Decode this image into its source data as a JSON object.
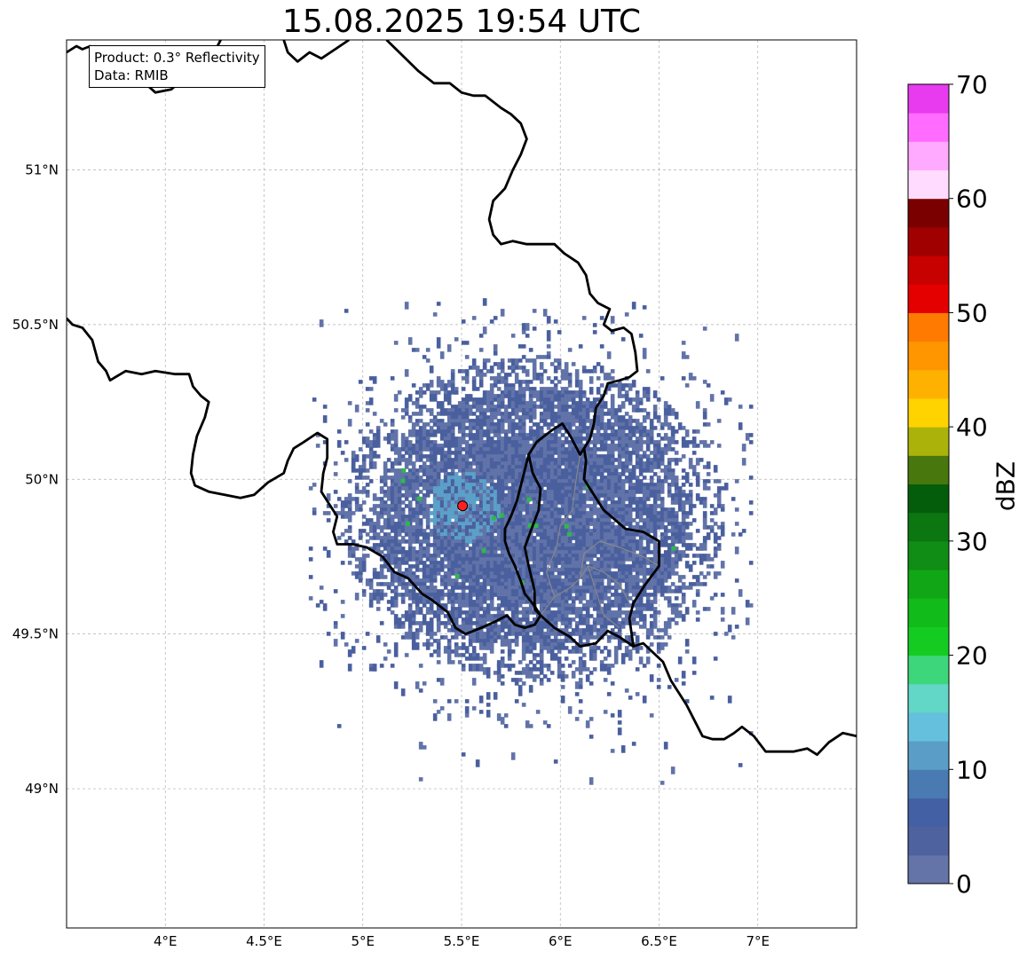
{
  "title": "15.08.2025 19:54 UTC",
  "infobox": {
    "product_line": "Product: 0.3° Reflectivity",
    "data_line": "Data: RMIB"
  },
  "map": {
    "extent": {
      "lon": [
        3.5,
        7.5
      ],
      "lat": [
        48.55,
        51.42
      ]
    },
    "lon_ticks": [
      {
        "value": 4.0,
        "label": "4°E"
      },
      {
        "value": 4.5,
        "label": "4.5°E"
      },
      {
        "value": 5.0,
        "label": "5°E"
      },
      {
        "value": 5.5,
        "label": "5.5°E"
      },
      {
        "value": 6.0,
        "label": "6°E"
      },
      {
        "value": 6.5,
        "label": "6.5°E"
      },
      {
        "value": 7.0,
        "label": "7°E"
      }
    ],
    "lat_ticks": [
      {
        "value": 49.0,
        "label": "49°N"
      },
      {
        "value": 49.5,
        "label": "49.5°N"
      },
      {
        "value": 50.0,
        "label": "50°N"
      },
      {
        "value": 50.5,
        "label": "50.5°N"
      },
      {
        "value": 51.0,
        "label": "51°N"
      }
    ],
    "radar_site": {
      "lon": 5.505,
      "lat": 49.914,
      "color": "#ff2020"
    },
    "echo_center": {
      "lon": 5.85,
      "lat": 49.88
    },
    "borders": [
      [
        [
          3.5,
          51.38
        ],
        [
          3.55,
          51.4
        ],
        [
          3.58,
          51.39
        ],
        [
          3.62,
          51.4
        ],
        [
          3.67,
          51.36
        ],
        [
          3.72,
          51.33
        ],
        [
          3.8,
          51.32
        ],
        [
          3.88,
          51.29
        ],
        [
          3.95,
          51.25
        ],
        [
          4.03,
          51.26
        ],
        [
          4.1,
          51.3
        ],
        [
          4.18,
          51.34
        ],
        [
          4.24,
          51.37
        ],
        [
          4.28,
          51.42
        ]
      ],
      [
        [
          4.6,
          51.42
        ],
        [
          4.62,
          51.38
        ],
        [
          4.67,
          51.35
        ],
        [
          4.73,
          51.38
        ],
        [
          4.79,
          51.36
        ],
        [
          4.86,
          51.39
        ],
        [
          4.93,
          51.42
        ]
      ],
      [
        [
          5.12,
          51.42
        ],
        [
          5.2,
          51.37
        ],
        [
          5.28,
          51.32
        ],
        [
          5.36,
          51.28
        ],
        [
          5.44,
          51.28
        ],
        [
          5.5,
          51.25
        ],
        [
          5.56,
          51.24
        ],
        [
          5.62,
          51.24
        ],
        [
          5.7,
          51.2
        ],
        [
          5.75,
          51.18
        ],
        [
          5.8,
          51.15
        ],
        [
          5.83,
          51.1
        ],
        [
          5.8,
          51.05
        ],
        [
          5.76,
          51.0
        ],
        [
          5.72,
          50.94
        ],
        [
          5.66,
          50.9
        ],
        [
          5.64,
          50.84
        ],
        [
          5.66,
          50.79
        ],
        [
          5.7,
          50.76
        ],
        [
          5.76,
          50.77
        ],
        [
          5.83,
          50.76
        ],
        [
          5.9,
          50.76
        ],
        [
          5.97,
          50.76
        ],
        [
          6.02,
          50.73
        ],
        [
          6.09,
          50.7
        ],
        [
          6.13,
          50.66
        ],
        [
          6.15,
          50.6
        ],
        [
          6.19,
          50.57
        ],
        [
          6.25,
          50.55
        ],
        [
          6.22,
          50.5
        ],
        [
          6.26,
          50.48
        ],
        [
          6.32,
          50.49
        ],
        [
          6.36,
          50.47
        ],
        [
          6.38,
          50.41
        ],
        [
          6.39,
          50.35
        ],
        [
          6.35,
          50.33
        ],
        [
          6.3,
          50.32
        ],
        [
          6.24,
          50.31
        ],
        [
          6.22,
          50.27
        ],
        [
          6.18,
          50.23
        ],
        [
          6.17,
          50.18
        ],
        [
          6.15,
          50.13
        ],
        [
          6.12,
          50.1
        ],
        [
          6.1,
          50.08
        ],
        [
          6.05,
          50.14
        ],
        [
          6.01,
          50.18
        ],
        [
          5.96,
          50.16
        ],
        [
          5.92,
          50.14
        ],
        [
          5.88,
          50.12
        ],
        [
          5.84,
          50.08
        ],
        [
          5.82,
          50.03
        ],
        [
          5.8,
          49.98
        ],
        [
          5.78,
          49.93
        ],
        [
          5.75,
          49.88
        ],
        [
          5.72,
          49.84
        ],
        [
          5.72,
          49.8
        ],
        [
          5.74,
          49.76
        ],
        [
          5.77,
          49.72
        ],
        [
          5.8,
          49.67
        ],
        [
          5.82,
          49.63
        ],
        [
          5.87,
          49.59
        ],
        [
          5.9,
          49.56
        ],
        [
          5.87,
          49.53
        ],
        [
          5.82,
          49.52
        ],
        [
          5.77,
          49.53
        ],
        [
          5.73,
          49.56
        ],
        [
          5.67,
          49.54
        ],
        [
          5.6,
          49.52
        ],
        [
          5.52,
          49.5
        ],
        [
          5.47,
          49.52
        ],
        [
          5.43,
          49.57
        ],
        [
          5.35,
          49.61
        ],
        [
          5.3,
          49.63
        ],
        [
          5.23,
          49.68
        ],
        [
          5.16,
          49.7
        ],
        [
          5.1,
          49.75
        ],
        [
          5.02,
          49.78
        ],
        [
          4.95,
          49.79
        ],
        [
          4.87,
          49.79
        ],
        [
          4.85,
          49.83
        ],
        [
          4.87,
          49.88
        ],
        [
          4.83,
          49.92
        ],
        [
          4.79,
          49.96
        ],
        [
          4.8,
          50.02
        ],
        [
          4.82,
          50.07
        ],
        [
          4.82,
          50.13
        ],
        [
          4.77,
          50.15
        ],
        [
          4.7,
          50.12
        ],
        [
          4.65,
          50.1
        ],
        [
          4.62,
          50.06
        ],
        [
          4.6,
          50.02
        ],
        [
          4.52,
          49.99
        ],
        [
          4.45,
          49.95
        ],
        [
          4.38,
          49.94
        ],
        [
          4.3,
          49.95
        ],
        [
          4.22,
          49.96
        ],
        [
          4.15,
          49.98
        ],
        [
          4.13,
          50.02
        ],
        [
          4.14,
          50.08
        ],
        [
          4.16,
          50.14
        ],
        [
          4.2,
          50.2
        ],
        [
          4.22,
          50.25
        ],
        [
          4.18,
          50.27
        ],
        [
          4.14,
          50.3
        ],
        [
          4.12,
          50.34
        ],
        [
          4.05,
          50.34
        ],
        [
          3.95,
          50.35
        ],
        [
          3.88,
          50.34
        ],
        [
          3.8,
          50.35
        ],
        [
          3.72,
          50.32
        ],
        [
          3.7,
          50.35
        ],
        [
          3.66,
          50.38
        ],
        [
          3.63,
          50.45
        ],
        [
          3.58,
          50.49
        ],
        [
          3.53,
          50.5
        ],
        [
          3.5,
          50.52
        ]
      ],
      [
        [
          5.84,
          50.08
        ],
        [
          5.86,
          50.02
        ],
        [
          5.9,
          49.97
        ],
        [
          5.89,
          49.9
        ],
        [
          5.86,
          49.85
        ],
        [
          5.82,
          49.78
        ],
        [
          5.84,
          49.72
        ],
        [
          5.87,
          49.64
        ],
        [
          5.87,
          49.58
        ],
        [
          5.9,
          49.56
        ]
      ],
      [
        [
          5.9,
          49.56
        ],
        [
          5.97,
          49.52
        ],
        [
          6.05,
          49.49
        ],
        [
          6.1,
          49.46
        ],
        [
          6.18,
          49.47
        ],
        [
          6.24,
          49.51
        ],
        [
          6.3,
          49.49
        ],
        [
          6.37,
          49.46
        ],
        [
          6.42,
          49.47
        ],
        [
          6.47,
          49.44
        ],
        [
          6.52,
          49.41
        ],
        [
          6.56,
          49.35
        ],
        [
          6.6,
          49.31
        ],
        [
          6.64,
          49.27
        ],
        [
          6.68,
          49.22
        ],
        [
          6.72,
          49.17
        ],
        [
          6.77,
          49.16
        ],
        [
          6.83,
          49.16
        ],
        [
          6.88,
          49.18
        ],
        [
          6.92,
          49.2
        ],
        [
          6.98,
          49.17
        ],
        [
          7.04,
          49.12
        ],
        [
          7.1,
          49.12
        ],
        [
          7.18,
          49.12
        ],
        [
          7.25,
          49.13
        ],
        [
          7.3,
          49.11
        ],
        [
          7.36,
          49.15
        ],
        [
          7.43,
          49.18
        ],
        [
          7.5,
          49.17
        ]
      ],
      [
        [
          6.37,
          49.46
        ],
        [
          6.35,
          49.55
        ],
        [
          6.37,
          49.6
        ],
        [
          6.43,
          49.66
        ],
        [
          6.5,
          49.72
        ],
        [
          6.5,
          49.8
        ],
        [
          6.42,
          49.83
        ],
        [
          6.33,
          49.84
        ],
        [
          6.22,
          49.9
        ],
        [
          6.17,
          49.95
        ],
        [
          6.12,
          50.0
        ],
        [
          6.13,
          50.06
        ],
        [
          6.12,
          50.1
        ]
      ]
    ],
    "provinces": [
      [
        [
          5.9,
          49.56
        ],
        [
          5.97,
          49.62
        ],
        [
          6.05,
          49.65
        ],
        [
          6.1,
          49.68
        ],
        [
          6.14,
          49.72
        ],
        [
          6.22,
          49.7
        ],
        [
          6.3,
          49.66
        ],
        [
          6.35,
          49.6
        ]
      ],
      [
        [
          5.97,
          49.62
        ],
        [
          5.93,
          49.7
        ],
        [
          5.98,
          49.78
        ],
        [
          6.0,
          49.85
        ],
        [
          6.06,
          49.9
        ],
        [
          6.08,
          50.0
        ],
        [
          6.1,
          50.08
        ]
      ],
      [
        [
          6.1,
          49.68
        ],
        [
          6.12,
          49.76
        ],
        [
          6.2,
          49.8
        ],
        [
          6.3,
          49.78
        ],
        [
          6.42,
          49.75
        ],
        [
          6.5,
          49.72
        ]
      ],
      [
        [
          6.14,
          49.72
        ],
        [
          6.22,
          49.56
        ],
        [
          6.3,
          49.52
        ]
      ]
    ],
    "colors": {
      "border": "#000000",
      "province": "#888888",
      "grid": "#b0b0b0",
      "echo_base": "#4a5f9e",
      "echo_light": "#6173a8",
      "echo_cyan": "#5ba0c8",
      "echo_green": "#2fb84a"
    }
  },
  "colorbar": {
    "label": "dBZ",
    "min": 0,
    "max": 70,
    "tick_values": [
      0,
      10,
      20,
      30,
      40,
      50,
      60,
      70
    ],
    "tick_labels": [
      "0",
      "10",
      "20",
      "30",
      "40",
      "50",
      "60",
      "70"
    ],
    "bins": [
      {
        "from": 0,
        "to": 2.5,
        "color": "#6473a8"
      },
      {
        "from": 2.5,
        "to": 5,
        "color": "#4f62a0"
      },
      {
        "from": 5,
        "to": 7.5,
        "color": "#4460a4"
      },
      {
        "from": 7.5,
        "to": 10,
        "color": "#4a7ab2"
      },
      {
        "from": 10,
        "to": 12.5,
        "color": "#5a9ec8"
      },
      {
        "from": 12.5,
        "to": 15,
        "color": "#65c0dd"
      },
      {
        "from": 15,
        "to": 17.5,
        "color": "#62d6c7"
      },
      {
        "from": 17.5,
        "to": 20,
        "color": "#3dd67a"
      },
      {
        "from": 20,
        "to": 22.5,
        "color": "#14cc21"
      },
      {
        "from": 22.5,
        "to": 25,
        "color": "#10bb1a"
      },
      {
        "from": 25,
        "to": 27.5,
        "color": "#10a615"
      },
      {
        "from": 27.5,
        "to": 30,
        "color": "#0f8d14"
      },
      {
        "from": 30,
        "to": 32.5,
        "color": "#0c7611"
      },
      {
        "from": 32.5,
        "to": 35,
        "color": "#045d0a"
      },
      {
        "from": 35,
        "to": 37.5,
        "color": "#48770d"
      },
      {
        "from": 37.5,
        "to": 40,
        "color": "#abb30b"
      },
      {
        "from": 40,
        "to": 42.5,
        "color": "#ffd300"
      },
      {
        "from": 42.5,
        "to": 45,
        "color": "#ffb100"
      },
      {
        "from": 45,
        "to": 47.5,
        "color": "#ff9600"
      },
      {
        "from": 47.5,
        "to": 50,
        "color": "#ff7a00"
      },
      {
        "from": 50,
        "to": 52.5,
        "color": "#e50000"
      },
      {
        "from": 52.5,
        "to": 55,
        "color": "#c70000"
      },
      {
        "from": 55,
        "to": 57.5,
        "color": "#a00000"
      },
      {
        "from": 57.5,
        "to": 60,
        "color": "#7a0000"
      },
      {
        "from": 60,
        "to": 62.5,
        "color": "#ffdcff"
      },
      {
        "from": 62.5,
        "to": 65,
        "color": "#ffaaff"
      },
      {
        "from": 65,
        "to": 67.5,
        "color": "#ff6cff"
      },
      {
        "from": 67.5,
        "to": 70,
        "color": "#e83aef"
      }
    ]
  }
}
